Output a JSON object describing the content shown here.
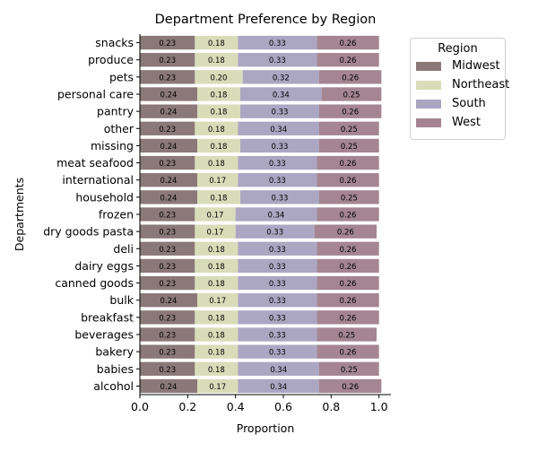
{
  "chart_data": {
    "type": "bar",
    "orientation": "horizontal",
    "stacked": true,
    "title": "Department Preference by Region",
    "xlabel": "Proportion",
    "ylabel": "Departments",
    "xlim": [
      0,
      1.05
    ],
    "xticks": [
      "0.0",
      "0.2",
      "0.4",
      "0.6",
      "0.8",
      "1.0"
    ],
    "categories": [
      "alcohol",
      "babies",
      "bakery",
      "beverages",
      "breakfast",
      "bulk",
      "canned goods",
      "dairy eggs",
      "deli",
      "dry goods pasta",
      "frozen",
      "household",
      "international",
      "meat seafood",
      "missing",
      "other",
      "pantry",
      "personal care",
      "pets",
      "produce",
      "snacks"
    ],
    "series": [
      {
        "name": "Midwest",
        "color": "#8b7878",
        "values": [
          0.24,
          0.23,
          0.23,
          0.23,
          0.23,
          0.24,
          0.23,
          0.23,
          0.23,
          0.23,
          0.23,
          0.24,
          0.24,
          0.23,
          0.24,
          0.23,
          0.24,
          0.24,
          0.23,
          0.23,
          0.23
        ]
      },
      {
        "name": "Northeast",
        "color": "#d9dcb8",
        "values": [
          0.17,
          0.18,
          0.18,
          0.18,
          0.18,
          0.17,
          0.18,
          0.18,
          0.18,
          0.17,
          0.17,
          0.18,
          0.17,
          0.18,
          0.18,
          0.18,
          0.18,
          0.18,
          0.2,
          0.18,
          0.18
        ]
      },
      {
        "name": "South",
        "color": "#aba6c2",
        "values": [
          0.34,
          0.34,
          0.33,
          0.33,
          0.33,
          0.33,
          0.33,
          0.33,
          0.33,
          0.33,
          0.34,
          0.33,
          0.33,
          0.33,
          0.33,
          0.34,
          0.33,
          0.34,
          0.32,
          0.33,
          0.33
        ]
      },
      {
        "name": "West",
        "color": "#a48591",
        "values": [
          0.26,
          0.25,
          0.26,
          0.25,
          0.26,
          0.26,
          0.26,
          0.26,
          0.26,
          0.26,
          0.26,
          0.25,
          0.26,
          0.26,
          0.25,
          0.25,
          0.26,
          0.25,
          0.26,
          0.26,
          0.26
        ]
      }
    ],
    "legend": {
      "title": "Region",
      "position": "outside upper right"
    }
  }
}
